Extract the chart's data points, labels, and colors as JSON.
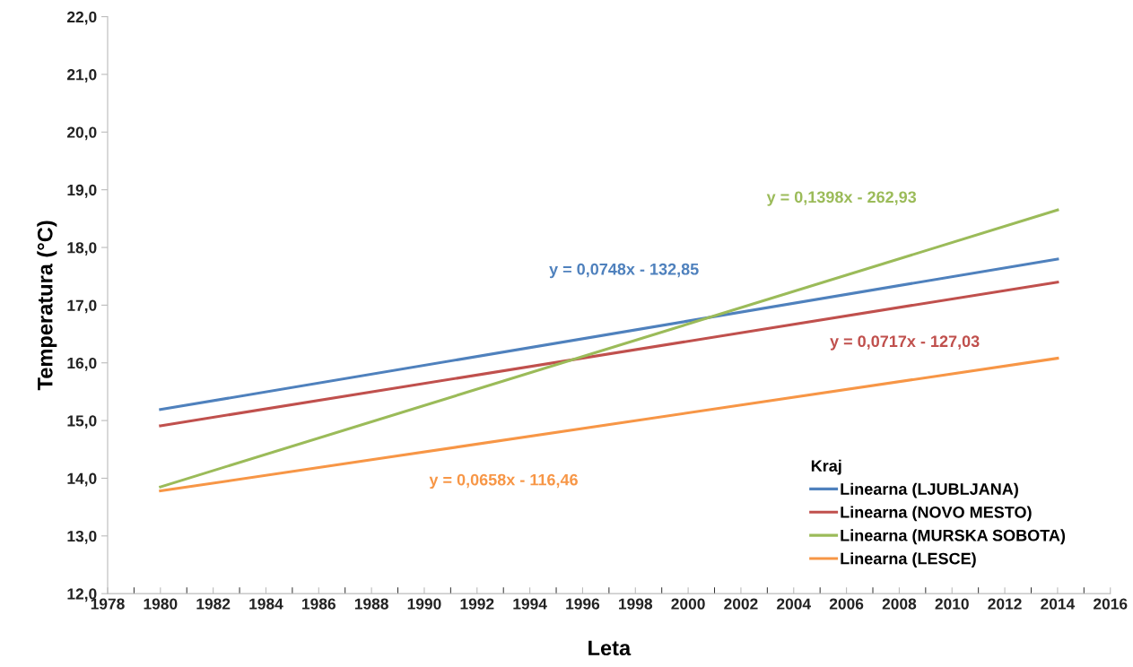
{
  "chart_data": {
    "type": "line",
    "xlabel": "Leta",
    "ylabel": "Temperatura (°C)",
    "legend_title": "Kraj",
    "legend": "bottom right",
    "grid": false,
    "marker": "none",
    "line_style": "solid",
    "series": [
      {
        "name": "Linearna (LJUBLJANA)",
        "color": "#4f81bd",
        "values": [
          15.19,
          17.8
        ]
      },
      {
        "name": "Linearna (NOVO MESTO)",
        "color": "#c0504d",
        "values": [
          14.91,
          17.4
        ]
      },
      {
        "name": "Linearna (MURSKA SOBOTA)",
        "color": "#9bbb59",
        "values": [
          13.85,
          18.65
        ]
      },
      {
        "name": "Linearna (LESCE)",
        "color": "#f79646",
        "values": [
          13.78,
          16.08
        ]
      }
    ],
    "x": [
      1980,
      2014
    ],
    "annotations": [
      "y = 0,0748x - 132,85",
      "y = 0,0717x - 127,03",
      "y = 0,1398x - 262,93",
      "y = 0,0658x - 116,46"
    ],
    "xlim": [
      1978,
      2016
    ],
    "xticks": [
      1978,
      1980,
      1982,
      1984,
      1986,
      1988,
      1990,
      1992,
      1994,
      1996,
      1998,
      2000,
      2002,
      2004,
      2006,
      2008,
      2010,
      2012,
      2014,
      2016
    ],
    "ylim": [
      12,
      22
    ],
    "yticks": [
      {
        "value": 12,
        "label": "12,0"
      },
      {
        "value": 13,
        "label": "13,0"
      },
      {
        "value": 14,
        "label": "14,0"
      },
      {
        "value": 15,
        "label": "15,0"
      },
      {
        "value": 16,
        "label": "16,0"
      },
      {
        "value": 17,
        "label": "17,0"
      },
      {
        "value": 18,
        "label": "18,0"
      },
      {
        "value": 19,
        "label": "19,0"
      },
      {
        "value": 20,
        "label": "20,0"
      },
      {
        "value": 21,
        "label": "21,0"
      },
      {
        "value": 22,
        "label": "22,0"
      }
    ]
  }
}
